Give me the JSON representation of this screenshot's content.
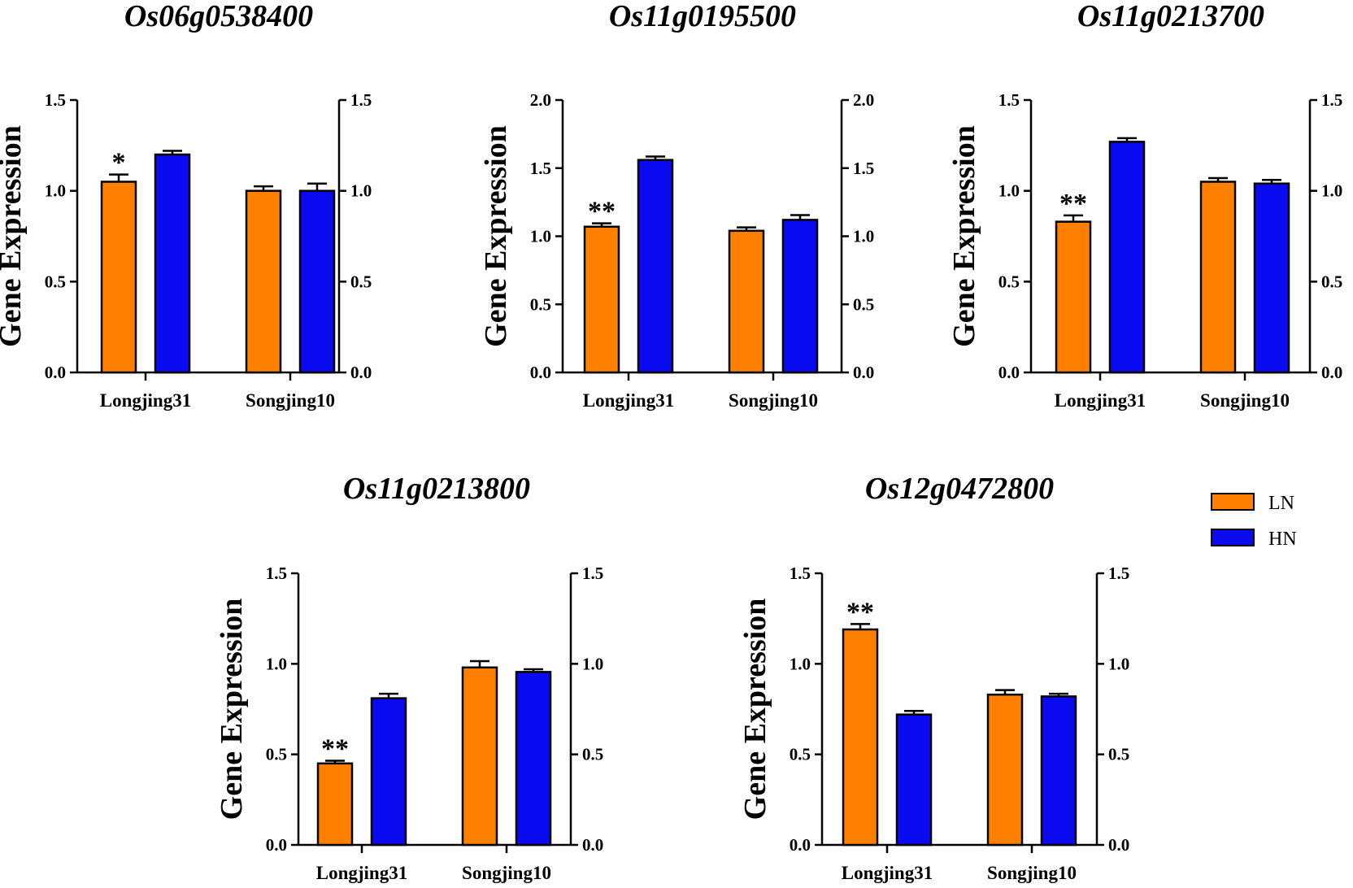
{
  "chart_data": [
    {
      "type": "bar",
      "title": "Os06g0538400",
      "ylabel": "Gene Expression",
      "ylim": [
        0,
        1.5
      ],
      "yticks": [
        "0.0",
        "0.5",
        "1.0",
        "1.5"
      ],
      "categories": [
        "Longjing31",
        "Songjing10"
      ],
      "series": [
        {
          "name": "LN",
          "values": [
            1.05,
            1.0
          ],
          "errors": [
            0.04,
            0.025
          ]
        },
        {
          "name": "HN",
          "values": [
            1.2,
            1.0
          ],
          "errors": [
            0.02,
            0.04
          ]
        }
      ],
      "annotations": [
        {
          "category": 0,
          "series": 0,
          "text": "*"
        }
      ]
    },
    {
      "type": "bar",
      "title": "Os11g0195500",
      "ylabel": "Gene Expression",
      "ylim": [
        0,
        2.0
      ],
      "yticks": [
        "0.0",
        "0.5",
        "1.0",
        "1.5",
        "2.0"
      ],
      "categories": [
        "Longjing31",
        "Songjing10"
      ],
      "series": [
        {
          "name": "LN",
          "values": [
            1.07,
            1.04
          ],
          "errors": [
            0.025,
            0.025
          ]
        },
        {
          "name": "HN",
          "values": [
            1.56,
            1.12
          ],
          "errors": [
            0.025,
            0.035
          ]
        }
      ],
      "annotations": [
        {
          "category": 0,
          "series": 0,
          "text": "**"
        }
      ]
    },
    {
      "type": "bar",
      "title": "Os11g0213700",
      "ylabel": "Gene Expression",
      "ylim": [
        0,
        1.5
      ],
      "yticks": [
        "0.0",
        "0.5",
        "1.0",
        "1.5"
      ],
      "categories": [
        "Longjing31",
        "Songjing10"
      ],
      "series": [
        {
          "name": "LN",
          "values": [
            0.83,
            1.05
          ],
          "errors": [
            0.035,
            0.02
          ]
        },
        {
          "name": "HN",
          "values": [
            1.27,
            1.04
          ],
          "errors": [
            0.02,
            0.02
          ]
        }
      ],
      "annotations": [
        {
          "category": 0,
          "series": 0,
          "text": "**"
        }
      ]
    },
    {
      "type": "bar",
      "title": "Os11g0213800",
      "ylabel": "Gene Expression",
      "ylim": [
        0,
        1.5
      ],
      "yticks": [
        "0.0",
        "0.5",
        "1.0",
        "1.5"
      ],
      "categories": [
        "Longjing31",
        "Songjing10"
      ],
      "series": [
        {
          "name": "LN",
          "values": [
            0.45,
            0.98
          ],
          "errors": [
            0.015,
            0.035
          ]
        },
        {
          "name": "HN",
          "values": [
            0.81,
            0.955
          ],
          "errors": [
            0.025,
            0.015
          ]
        }
      ],
      "annotations": [
        {
          "category": 0,
          "series": 0,
          "text": "**"
        }
      ]
    },
    {
      "type": "bar",
      "title": "Os12g0472800",
      "ylabel": "Gene Expression",
      "ylim": [
        0,
        1.5
      ],
      "yticks": [
        "0.0",
        "0.5",
        "1.0",
        "1.5"
      ],
      "categories": [
        "Longjing31",
        "Songjing10"
      ],
      "series": [
        {
          "name": "LN",
          "values": [
            1.19,
            0.83
          ],
          "errors": [
            0.03,
            0.025
          ]
        },
        {
          "name": "HN",
          "values": [
            0.72,
            0.82
          ],
          "errors": [
            0.02,
            0.015
          ]
        }
      ],
      "annotations": [
        {
          "category": 0,
          "series": 0,
          "text": "**"
        }
      ]
    }
  ],
  "legend": {
    "position": "right",
    "items": [
      {
        "label": "LN",
        "color": "#FF8000"
      },
      {
        "label": "HN",
        "color": "#0A0AF0"
      }
    ]
  }
}
